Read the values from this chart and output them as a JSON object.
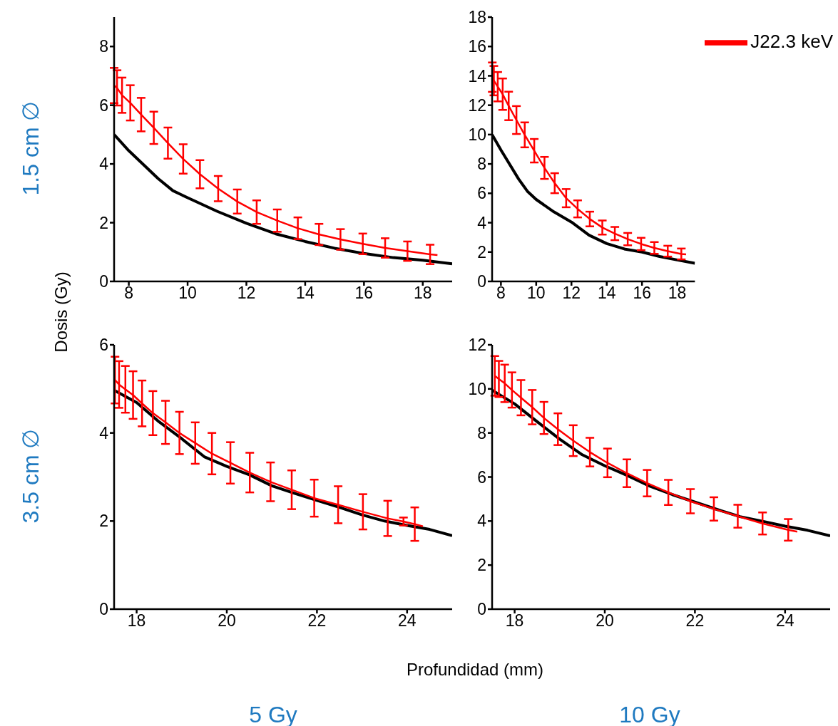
{
  "chart_data": [
    {
      "type": "line",
      "ylabel": "Dosis (Gy)",
      "annotations": [
        "1.5 cm ∅"
      ],
      "xlim": [
        7.5,
        19
      ],
      "xticks": [
        8,
        10,
        12,
        14,
        16,
        18
      ],
      "ylim": [
        0,
        9
      ],
      "yticks": [
        0,
        2,
        4,
        6,
        8
      ],
      "marker": "none",
      "grid": false,
      "series": [
        {
          "color": "#000000",
          "x": [
            7.5,
            8,
            9,
            9.5,
            10,
            11,
            12,
            13,
            14,
            15,
            16,
            17,
            18,
            19
          ],
          "values": [
            5.0,
            4.45,
            3.5,
            3.09,
            2.85,
            2.39,
            1.98,
            1.62,
            1.36,
            1.13,
            0.95,
            0.81,
            0.72,
            0.6
          ]
        },
        {
          "color": "#ff0000",
          "x": [
            7.5,
            7.6,
            7.77,
            8.05,
            8.42,
            8.85,
            9.33,
            9.85,
            10.42,
            11.04,
            11.69,
            12.35,
            13.05,
            13.75,
            14.47,
            15.2,
            15.96,
            16.72,
            17.48,
            18.25,
            18.5
          ],
          "values": [
            6.67,
            6.59,
            6.34,
            6.08,
            5.68,
            5.23,
            4.71,
            4.17,
            3.65,
            3.16,
            2.72,
            2.36,
            2.07,
            1.81,
            1.6,
            1.43,
            1.28,
            1.14,
            1.03,
            0.92,
            0.9
          ],
          "errors": [
            0.6,
            0.6,
            0.6,
            0.6,
            0.57,
            0.55,
            0.53,
            0.5,
            0.48,
            0.43,
            0.41,
            0.4,
            0.38,
            0.37,
            0.36,
            0.35,
            0.35,
            0.33,
            0.33,
            0.33,
            null
          ]
        }
      ]
    },
    {
      "type": "line",
      "legend": "top right",
      "xlim": [
        7.5,
        19
      ],
      "xticks": [
        8,
        10,
        12,
        14,
        16,
        18
      ],
      "ylim": [
        0,
        18
      ],
      "yticks": [
        0,
        2,
        4,
        6,
        8,
        10,
        12,
        14,
        16,
        18
      ],
      "marker": "none",
      "grid": false,
      "series": [
        {
          "color": "#000000",
          "x": [
            7.5,
            8,
            9,
            9.5,
            10,
            11,
            12,
            13,
            14,
            15,
            16,
            17,
            18,
            19
          ],
          "values": [
            10.0,
            8.95,
            6.98,
            6.14,
            5.58,
            4.74,
            4.04,
            3.15,
            2.58,
            2.21,
            2.0,
            1.7,
            1.46,
            1.24
          ]
        },
        {
          "name": "J22.3 keV",
          "color": "#ff0000",
          "x": [
            7.51,
            7.6,
            7.82,
            8.1,
            8.44,
            8.88,
            9.35,
            9.89,
            10.47,
            11.05,
            11.7,
            12.35,
            13.04,
            13.75,
            14.46,
            15.19,
            15.95,
            16.7,
            17.46,
            18.23,
            18.5
          ],
          "values": [
            13.91,
            13.67,
            13.26,
            12.75,
            11.95,
            10.99,
            9.98,
            8.9,
            7.73,
            6.69,
            5.67,
            4.94,
            4.25,
            3.67,
            3.26,
            2.88,
            2.55,
            2.28,
            2.06,
            1.87,
            1.84
          ],
          "errors": [
            1.0,
            1.0,
            1.0,
            1.07,
            0.97,
            0.95,
            0.85,
            0.8,
            0.75,
            0.68,
            0.62,
            0.58,
            0.5,
            0.48,
            0.45,
            0.42,
            0.42,
            0.4,
            0.37,
            0.37,
            null
          ]
        }
      ]
    },
    {
      "type": "line",
      "xlabel": "Profundidad (mm)",
      "annotations": [
        "3.5 cm ∅",
        "5 Gy"
      ],
      "xlim": [
        17.5,
        25
      ],
      "xticks": [
        18,
        20,
        22,
        24
      ],
      "ylim": [
        0,
        6
      ],
      "yticks": [
        0,
        2,
        4,
        6
      ],
      "marker": "none",
      "grid": false,
      "series": [
        {
          "color": "#000000",
          "x": [
            17.5,
            18,
            18.5,
            19,
            19.5,
            20,
            20.5,
            21,
            21.5,
            22,
            22.5,
            23,
            23.5,
            24,
            24.5,
            25
          ],
          "values": [
            4.97,
            4.69,
            4.25,
            3.87,
            3.46,
            3.24,
            3.05,
            2.8,
            2.63,
            2.47,
            2.31,
            2.14,
            2.0,
            1.9,
            1.81,
            1.67
          ]
        },
        {
          "color": "#ff0000",
          "x": [
            17.52,
            17.61,
            17.75,
            17.92,
            18.12,
            18.36,
            18.64,
            18.95,
            19.3,
            19.67,
            20.08,
            20.51,
            20.97,
            21.44,
            21.94,
            22.47,
            23.02,
            23.57,
            23.92,
            24.17,
            24.35
          ],
          "values": [
            5.2,
            5.1,
            4.99,
            4.86,
            4.67,
            4.45,
            4.24,
            4.0,
            3.77,
            3.53,
            3.32,
            3.1,
            2.89,
            2.71,
            2.52,
            2.37,
            2.21,
            2.06,
            1.99,
            1.93,
            1.88
          ],
          "errors": [
            0.53,
            0.53,
            0.53,
            0.54,
            0.52,
            0.5,
            0.49,
            0.48,
            0.47,
            0.47,
            0.47,
            0.45,
            0.44,
            0.44,
            0.42,
            0.42,
            0.4,
            0.4,
            0.09,
            0.38,
            null
          ]
        }
      ]
    },
    {
      "type": "line",
      "annotations": [
        "10 Gy"
      ],
      "xlim": [
        17.5,
        25
      ],
      "xticks": [
        18,
        20,
        22,
        24
      ],
      "ylim": [
        0,
        12
      ],
      "yticks": [
        0,
        2,
        4,
        6,
        8,
        10,
        12
      ],
      "marker": "none",
      "grid": false,
      "series": [
        {
          "color": "#000000",
          "x": [
            17.5,
            18,
            18.5,
            19,
            19.5,
            20,
            20.5,
            21,
            21.5,
            22,
            22.5,
            23,
            23.5,
            24,
            24.5,
            25
          ],
          "values": [
            9.94,
            9.32,
            8.51,
            7.72,
            7.01,
            6.51,
            6.07,
            5.58,
            5.2,
            4.86,
            4.52,
            4.2,
            3.99,
            3.77,
            3.58,
            3.33
          ]
        },
        {
          "color": "#ff0000",
          "x": [
            17.56,
            17.65,
            17.78,
            17.94,
            18.14,
            18.39,
            18.65,
            18.96,
            19.3,
            19.67,
            20.06,
            20.49,
            20.94,
            21.41,
            21.9,
            22.42,
            22.95,
            23.5,
            24.07,
            24.27
          ],
          "values": [
            10.59,
            10.45,
            10.25,
            9.95,
            9.6,
            9.17,
            8.68,
            8.17,
            7.65,
            7.13,
            6.64,
            6.17,
            5.72,
            5.3,
            4.9,
            4.55,
            4.22,
            3.89,
            3.6,
            3.52
          ],
          "errors": [
            0.9,
            0.82,
            0.85,
            0.8,
            0.8,
            0.78,
            0.73,
            0.72,
            0.7,
            0.65,
            0.65,
            0.63,
            0.6,
            0.57,
            0.55,
            0.53,
            0.52,
            0.5,
            0.49,
            null
          ]
        }
      ]
    }
  ]
}
